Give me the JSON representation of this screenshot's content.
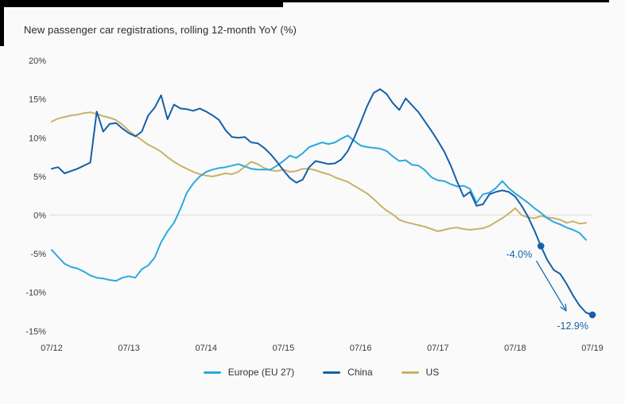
{
  "title": "New passenger car registrations, rolling 12-month YoY (%)",
  "colors": {
    "europe": "#2BA8E0",
    "china": "#1660A8",
    "us": "#C9B168",
    "zero_gridline": "#E4E4E4",
    "title_text": "#2B2B2B",
    "axis_text": "#3A3A3A",
    "annotation_text": "#1660A8",
    "background": "#FAFAFA"
  },
  "axes": {
    "y": {
      "tick_labels": [
        "20%",
        "15%",
        "10%",
        "5%",
        "0%",
        "-5%",
        "-10%",
        "-15%"
      ],
      "tick_values": [
        20,
        15,
        10,
        5,
        0,
        -5,
        -10,
        -15
      ],
      "range": [
        -15,
        20
      ],
      "unit": "%"
    },
    "x": {
      "tick_labels": [
        "07/12",
        "07/13",
        "07/14",
        "07/15",
        "07/16",
        "07/17",
        "07/18",
        "07/19"
      ],
      "tick_month_indices": [
        0,
        12,
        24,
        36,
        48,
        60,
        72,
        84
      ]
    }
  },
  "legend": {
    "items": [
      {
        "label": "Europe (EU 27)",
        "series_index": 0
      },
      {
        "label": "China",
        "series_index": 1
      },
      {
        "label": "US",
        "series_index": 2
      }
    ]
  },
  "annotations": [
    {
      "text": "-4.0%",
      "series": "China",
      "month_index": 76,
      "value": -4.0
    },
    {
      "text": "-12.9%",
      "series": "China",
      "month_index": 84,
      "value": -12.9
    }
  ],
  "chart_data": {
    "type": "line",
    "title": "New passenger car registrations, rolling 12-month YoY (%)",
    "x_axis": {
      "start": "07/12",
      "end": "07/19",
      "frequency": "monthly",
      "tick_labels": [
        "07/12",
        "07/13",
        "07/14",
        "07/15",
        "07/16",
        "07/17",
        "07/18",
        "07/19"
      ]
    },
    "y_axis": {
      "unit": "%",
      "range": [
        -15,
        20
      ],
      "gridline_at": 0,
      "grid": "zero-line-only"
    },
    "legend_position": "bottom-center",
    "series": [
      {
        "name": "Europe (EU 27)",
        "color": "#2BA8E0",
        "start_month_index": 0,
        "values": [
          -4.5,
          -5.4,
          -6.3,
          -6.7,
          -6.9,
          -7.3,
          -7.8,
          -8.1,
          -8.2,
          -8.4,
          -8.5,
          -8.1,
          -7.9,
          -8.1,
          -7.0,
          -6.5,
          -5.5,
          -3.5,
          -2.1,
          -1.0,
          0.8,
          2.9,
          4.1,
          5.0,
          5.6,
          5.9,
          6.1,
          6.2,
          6.4,
          6.6,
          6.3,
          6.0,
          5.9,
          5.9,
          5.9,
          6.4,
          7.0,
          7.7,
          7.4,
          8.0,
          8.8,
          9.1,
          9.4,
          9.2,
          9.4,
          9.9,
          10.3,
          9.6,
          9.0,
          8.8,
          8.7,
          8.6,
          8.3,
          7.6,
          7.0,
          7.1,
          6.5,
          6.4,
          5.8,
          4.9,
          4.5,
          4.4,
          4.0,
          3.7,
          3.8,
          3.4,
          1.6,
          2.7,
          2.9,
          3.5,
          4.4,
          3.5,
          2.8,
          2.2,
          1.6,
          0.9,
          0.3,
          -0.4,
          -0.9,
          -1.2,
          -1.6,
          -1.9,
          -2.3,
          -3.2
        ]
      },
      {
        "name": "China",
        "color": "#1660A8",
        "start_month_index": 0,
        "values": [
          6.0,
          6.2,
          5.4,
          5.7,
          6.0,
          6.4,
          6.8,
          13.4,
          10.8,
          11.8,
          11.9,
          11.2,
          10.6,
          10.2,
          10.8,
          12.9,
          13.9,
          15.5,
          12.4,
          14.3,
          13.8,
          13.7,
          13.5,
          13.8,
          13.4,
          12.9,
          12.3,
          11.0,
          10.1,
          10.0,
          10.1,
          9.4,
          9.3,
          8.7,
          7.9,
          6.9,
          5.8,
          4.8,
          4.2,
          4.6,
          6.2,
          7.0,
          6.8,
          6.6,
          6.7,
          7.2,
          8.3,
          10.0,
          12.0,
          14.1,
          15.8,
          16.3,
          15.7,
          14.5,
          13.6,
          15.1,
          14.2,
          13.3,
          12.1,
          10.9,
          9.6,
          8.2,
          6.4,
          4.3,
          2.4,
          3.0,
          1.2,
          1.4,
          2.7,
          3.0,
          3.2,
          3.0,
          2.4,
          1.2,
          -0.2,
          -2.0,
          -4.0,
          -5.8,
          -7.1,
          -7.6,
          -8.9,
          -10.4,
          -11.7,
          -12.6,
          -12.9
        ],
        "markers": [
          {
            "month_index": 76,
            "value": -4.0,
            "label": "-4.0%"
          },
          {
            "month_index": 84,
            "value": -12.9,
            "label": "-12.9%"
          }
        ]
      },
      {
        "name": "US",
        "color": "#C9B168",
        "start_month_index": 0,
        "values": [
          12.1,
          12.5,
          12.7,
          12.9,
          13.0,
          13.2,
          13.3,
          13.1,
          12.8,
          12.6,
          12.3,
          11.7,
          10.9,
          10.3,
          9.7,
          9.1,
          8.7,
          8.2,
          7.5,
          6.9,
          6.4,
          6.0,
          5.6,
          5.3,
          5.1,
          5.0,
          5.2,
          5.4,
          5.3,
          5.6,
          6.3,
          6.9,
          6.6,
          6.1,
          5.8,
          5.7,
          5.9,
          5.6,
          5.7,
          6.0,
          6.0,
          5.8,
          5.5,
          5.3,
          4.9,
          4.6,
          4.3,
          3.8,
          3.3,
          2.8,
          2.1,
          1.3,
          0.6,
          0.1,
          -0.6,
          -0.9,
          -1.1,
          -1.3,
          -1.5,
          -1.8,
          -2.1,
          -1.9,
          -1.7,
          -1.6,
          -1.8,
          -1.9,
          -1.8,
          -1.7,
          -1.4,
          -0.9,
          -0.4,
          0.2,
          0.9,
          0.0,
          -0.3,
          -0.4,
          -0.1,
          -0.3,
          -0.4,
          -0.6,
          -1.0,
          -0.8,
          -1.1,
          -1.0
        ]
      }
    ]
  }
}
